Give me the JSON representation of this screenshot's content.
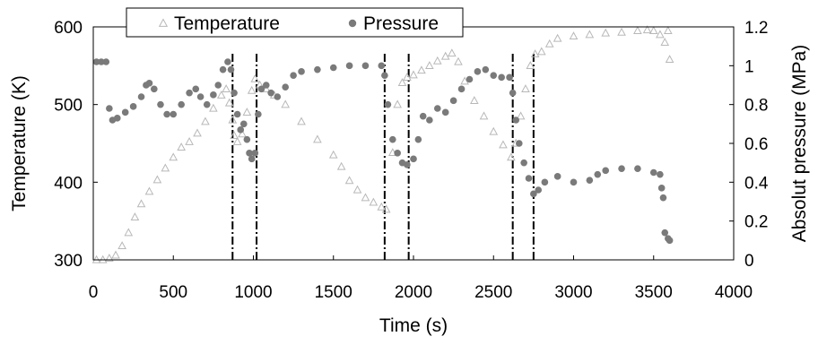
{
  "chart_data": {
    "type": "scatter",
    "x_axis": {
      "label": "Time (s)",
      "range": [
        0,
        4000
      ],
      "ticks": [
        0,
        500,
        1000,
        1500,
        2000,
        2500,
        3000,
        3500,
        4000
      ]
    },
    "y_axis_left": {
      "label": "Temperature (K)",
      "range": [
        300,
        600
      ],
      "ticks": [
        300,
        400,
        500,
        600
      ]
    },
    "y_axis_right": {
      "label": "Absolut pressure (MPa)",
      "range": [
        0,
        1.2
      ],
      "ticks": [
        "0",
        "0.2",
        "0.4",
        "0.6",
        "0.8",
        "1",
        "1.2"
      ]
    },
    "legend": {
      "position": "top",
      "entries": [
        "Temperature",
        "Pressure"
      ]
    },
    "grid": false,
    "vertical_markers": [
      870,
      1020,
      1820,
      1970,
      2620,
      2750
    ],
    "series": [
      {
        "name": "Temperature",
        "axis": "left",
        "marker": "open-triangle",
        "color": "#b8b8b8",
        "points": [
          [
            20,
            300
          ],
          [
            60,
            300
          ],
          [
            100,
            302
          ],
          [
            140,
            306
          ],
          [
            180,
            318
          ],
          [
            220,
            335
          ],
          [
            260,
            355
          ],
          [
            300,
            372
          ],
          [
            350,
            388
          ],
          [
            400,
            403
          ],
          [
            450,
            418
          ],
          [
            500,
            432
          ],
          [
            550,
            445
          ],
          [
            600,
            452
          ],
          [
            650,
            463
          ],
          [
            700,
            478
          ],
          [
            750,
            495
          ],
          [
            800,
            512
          ],
          [
            830,
            520
          ],
          [
            850,
            502
          ],
          [
            870,
            480
          ],
          [
            880,
            460
          ],
          [
            900,
            452
          ],
          [
            930,
            462
          ],
          [
            960,
            490
          ],
          [
            990,
            518
          ],
          [
            1010,
            533
          ],
          [
            1040,
            525
          ],
          [
            1080,
            520
          ],
          [
            1130,
            512
          ],
          [
            1200,
            500
          ],
          [
            1300,
            478
          ],
          [
            1400,
            455
          ],
          [
            1500,
            435
          ],
          [
            1550,
            420
          ],
          [
            1600,
            402
          ],
          [
            1650,
            390
          ],
          [
            1700,
            380
          ],
          [
            1750,
            374
          ],
          [
            1800,
            368
          ],
          [
            1830,
            365
          ],
          [
            1870,
            438
          ],
          [
            1900,
            500
          ],
          [
            1930,
            528
          ],
          [
            1960,
            535
          ],
          [
            2000,
            538
          ],
          [
            2050,
            544
          ],
          [
            2100,
            550
          ],
          [
            2150,
            556
          ],
          [
            2200,
            562
          ],
          [
            2240,
            566
          ],
          [
            2280,
            555
          ],
          [
            2320,
            530
          ],
          [
            2380,
            505
          ],
          [
            2440,
            485
          ],
          [
            2500,
            465
          ],
          [
            2560,
            448
          ],
          [
            2610,
            432
          ],
          [
            2640,
            450
          ],
          [
            2670,
            485
          ],
          [
            2700,
            520
          ],
          [
            2730,
            550
          ],
          [
            2760,
            565
          ],
          [
            2800,
            568
          ],
          [
            2850,
            578
          ],
          [
            2900,
            585
          ],
          [
            3000,
            588
          ],
          [
            3100,
            590
          ],
          [
            3200,
            592
          ],
          [
            3300,
            593
          ],
          [
            3400,
            595
          ],
          [
            3460,
            596
          ],
          [
            3500,
            595
          ],
          [
            3540,
            590
          ],
          [
            3570,
            580
          ],
          [
            3590,
            595
          ],
          [
            3600,
            558
          ]
        ]
      },
      {
        "name": "Pressure",
        "axis": "right",
        "marker": "filled-circle",
        "color": "#7a7a7a",
        "points": [
          [
            20,
            1.02
          ],
          [
            50,
            1.02
          ],
          [
            80,
            1.02
          ],
          [
            100,
            0.78
          ],
          [
            120,
            0.72
          ],
          [
            150,
            0.73
          ],
          [
            200,
            0.76
          ],
          [
            250,
            0.79
          ],
          [
            300,
            0.84
          ],
          [
            330,
            0.9
          ],
          [
            350,
            0.91
          ],
          [
            380,
            0.88
          ],
          [
            420,
            0.8
          ],
          [
            460,
            0.75
          ],
          [
            500,
            0.75
          ],
          [
            550,
            0.8
          ],
          [
            600,
            0.86
          ],
          [
            640,
            0.88
          ],
          [
            670,
            0.84
          ],
          [
            710,
            0.8
          ],
          [
            750,
            0.85
          ],
          [
            780,
            0.9
          ],
          [
            810,
            0.98
          ],
          [
            840,
            1.02
          ],
          [
            860,
            0.98
          ],
          [
            880,
            0.86
          ],
          [
            900,
            0.75
          ],
          [
            920,
            0.67
          ],
          [
            940,
            0.7
          ],
          [
            960,
            0.62
          ],
          [
            975,
            0.55
          ],
          [
            990,
            0.52
          ],
          [
            1010,
            0.55
          ],
          [
            1030,
            0.75
          ],
          [
            1050,
            0.88
          ],
          [
            1080,
            0.9
          ],
          [
            1110,
            0.86
          ],
          [
            1150,
            0.84
          ],
          [
            1200,
            0.89
          ],
          [
            1250,
            0.95
          ],
          [
            1300,
            0.97
          ],
          [
            1400,
            0.98
          ],
          [
            1500,
            0.99
          ],
          [
            1600,
            1.0
          ],
          [
            1700,
            1.0
          ],
          [
            1800,
            1.0
          ],
          [
            1820,
            0.95
          ],
          [
            1840,
            0.8
          ],
          [
            1870,
            0.62
          ],
          [
            1900,
            0.55
          ],
          [
            1930,
            0.5
          ],
          [
            1960,
            0.49
          ],
          [
            2000,
            0.52
          ],
          [
            2030,
            0.62
          ],
          [
            2060,
            0.74
          ],
          [
            2100,
            0.72
          ],
          [
            2150,
            0.78
          ],
          [
            2200,
            0.76
          ],
          [
            2250,
            0.82
          ],
          [
            2300,
            0.88
          ],
          [
            2350,
            0.93
          ],
          [
            2400,
            0.97
          ],
          [
            2450,
            0.98
          ],
          [
            2500,
            0.95
          ],
          [
            2550,
            0.94
          ],
          [
            2600,
            0.94
          ],
          [
            2620,
            0.86
          ],
          [
            2640,
            0.72
          ],
          [
            2660,
            0.6
          ],
          [
            2690,
            0.5
          ],
          [
            2720,
            0.42
          ],
          [
            2750,
            0.34
          ],
          [
            2780,
            0.36
          ],
          [
            2820,
            0.4
          ],
          [
            2900,
            0.43
          ],
          [
            3000,
            0.4
          ],
          [
            3100,
            0.41
          ],
          [
            3150,
            0.44
          ],
          [
            3200,
            0.46
          ],
          [
            3300,
            0.47
          ],
          [
            3400,
            0.47
          ],
          [
            3500,
            0.45
          ],
          [
            3540,
            0.44
          ],
          [
            3550,
            0.37
          ],
          [
            3560,
            0.32
          ],
          [
            3570,
            0.14
          ],
          [
            3590,
            0.11
          ],
          [
            3600,
            0.1
          ]
        ]
      }
    ]
  }
}
